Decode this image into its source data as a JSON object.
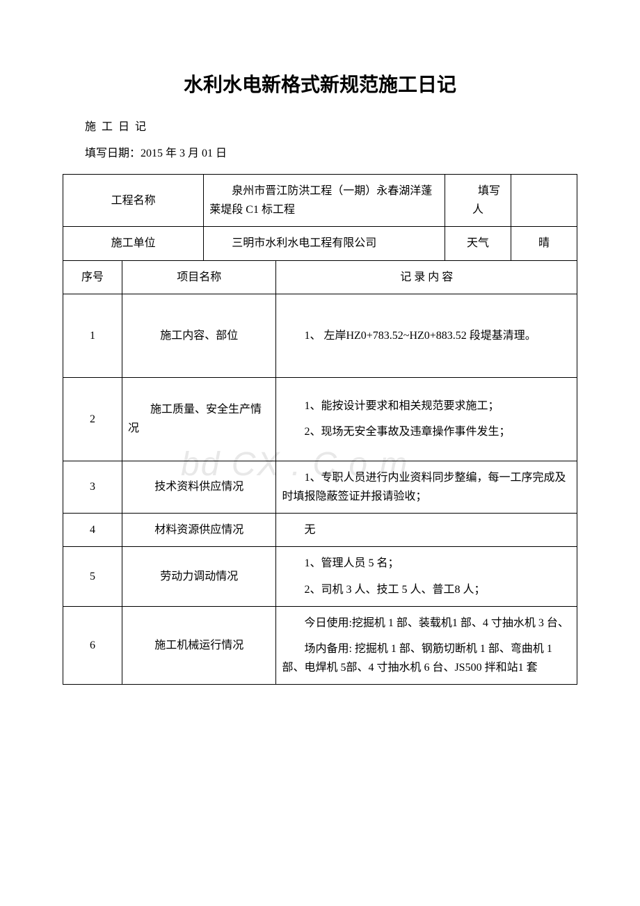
{
  "document": {
    "title": "水利水电新格式新规范施工日记",
    "subtitle": "施 工 日 记",
    "dateLine": "填写日期：2015 年 3 月 01 日",
    "watermark": "bd  CX . C o m"
  },
  "header": {
    "projectNameLabel": "工程名称",
    "projectNameValue": "　　泉州市晋江防洪工程（一期）永春湖洋蓬莱堤段 C1 标工程",
    "writerLabel": "　　填写人",
    "writerValue": "",
    "companyLabel": "施工单位",
    "companyValue": "　　三明市水利水电工程有限公司",
    "weatherLabel": "天气",
    "weatherValue": "晴"
  },
  "tableHeaders": {
    "seq": "序号",
    "item": "项目名称",
    "record": "记 录 内 容"
  },
  "rows": [
    {
      "seq": "1",
      "item": "施工内容、部位",
      "content": "　　1、 左岸HZ0+783.52~HZ0+883.52 段堤基清理。"
    },
    {
      "seq": "2",
      "item": "　　施工质量、安全生产情况",
      "content": "　　1、能按设计要求和相关规范要求施工；\n　　2、现场无安全事故及违章操作事件发生；"
    },
    {
      "seq": "3",
      "item": "技术资料供应情况",
      "content": "　　1、专职人员进行内业资料同步整编，每一工序完成及时填报隐蔽签证并报请验收；"
    },
    {
      "seq": "4",
      "item": "材料资源供应情况",
      "content": "　　无"
    },
    {
      "seq": "5",
      "item": "劳动力调动情况",
      "content": "　　1、管理人员 5 名；\n　　2、司机 3 人、技工 5 人、普工8 人；"
    },
    {
      "seq": "6",
      "item": "施工机械运行情况",
      "content": "　　今日使用:挖掘机 1 部、装载机1 部、4 寸抽水机 3 台、\n　　场内备用: 挖掘机 1 部、钢筋切断机 1 部、弯曲机 1 部、电焊机 5部、4 寸抽水机 6 台、JS500 拌和站1 套"
    }
  ],
  "styling": {
    "backgroundColor": "#ffffff",
    "textColor": "#000000",
    "borderColor": "#000000",
    "watermarkColor": "#e8e8e8",
    "titleFontSize": 28,
    "bodyFontSize": 16,
    "titleFontFamily": "SimHei",
    "bodyFontFamily": "SimSun"
  }
}
